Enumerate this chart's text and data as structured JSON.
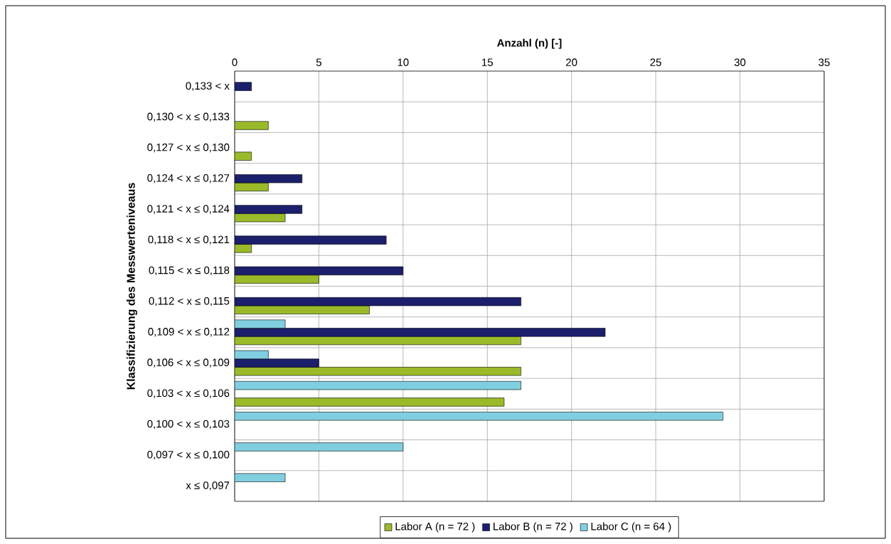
{
  "chart_data": {
    "type": "bar",
    "orientation": "horizontal",
    "xlabel": "Anzahl (n) [-]",
    "ylabel": "Klassifizierung des Messwerteniveaus",
    "categories": [
      "0,133 < x",
      "0,130 < x ≤ 0,133",
      "0,127 < x ≤ 0,130",
      "0,124 < x ≤ 0,127",
      "0,121 < x ≤ 0,124",
      "0,118 < x ≤ 0,121",
      "0,115 < x ≤ 0,118",
      "0,112 < x ≤ 0,115",
      "0,109 < x ≤ 0,112",
      "0,106 < x ≤ 0,109",
      "0,103 < x ≤ 0,106",
      "0,100 < x ≤ 0,103",
      "0,097 < x ≤ 0,100",
      "x ≤ 0,097"
    ],
    "series": [
      {
        "name": "Labor A (n = 72 )",
        "color": "#9bba2a",
        "values": [
          null,
          2,
          1,
          2,
          3,
          1,
          5,
          8,
          17,
          17,
          16,
          null,
          null,
          null
        ]
      },
      {
        "name": "Labor B (n = 72 )",
        "color": "#1c1f6b",
        "values": [
          1,
          null,
          null,
          4,
          4,
          9,
          10,
          17,
          22,
          5,
          null,
          null,
          null,
          null
        ]
      },
      {
        "name": "Labor C (n = 64 )",
        "color": "#80cfe0",
        "values": [
          null,
          null,
          null,
          null,
          null,
          null,
          null,
          null,
          3,
          2,
          17,
          29,
          10,
          3
        ]
      }
    ],
    "xlim": [
      0,
      35
    ],
    "xticks": [
      0,
      5,
      10,
      15,
      20,
      25,
      30,
      35
    ],
    "grid": true,
    "legend": "bottom"
  }
}
